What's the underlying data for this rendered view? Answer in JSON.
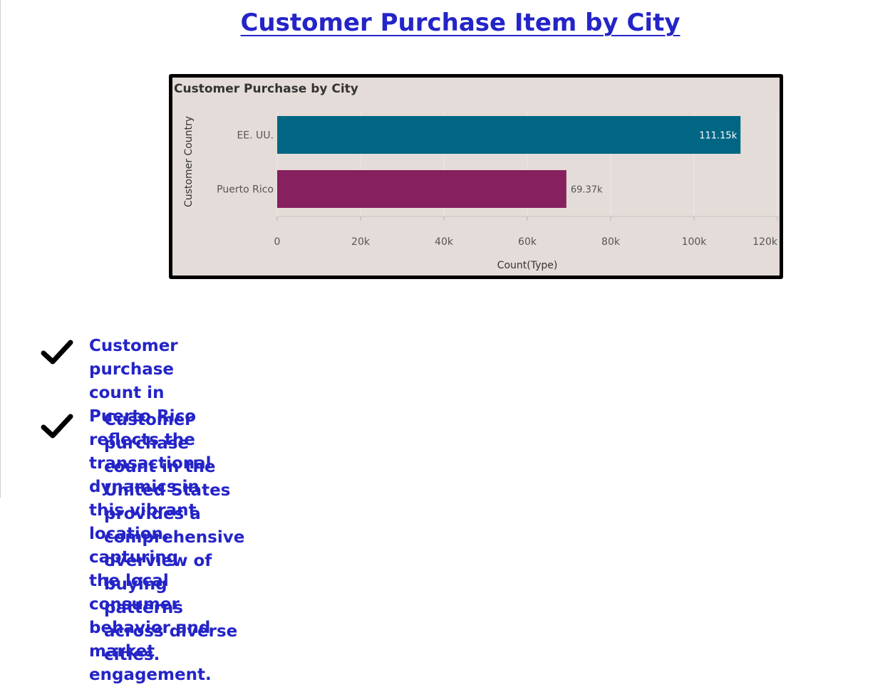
{
  "page": {
    "title": "Customer Purchase Item by City"
  },
  "chart_data": {
    "type": "bar",
    "orientation": "horizontal",
    "title": "Customer Purchase by City",
    "xlabel": "Count(Type)",
    "ylabel": "Customer Country",
    "categories": [
      "EE. UU.",
      "Puerto Rico"
    ],
    "values": [
      111150,
      69370
    ],
    "data_labels": [
      "111.15k",
      "69.37k"
    ],
    "bar_colors": [
      "#006684",
      "#86205e"
    ],
    "xlim": [
      0,
      120000
    ],
    "x_ticks": [
      0,
      20000,
      40000,
      60000,
      80000,
      100000,
      120000
    ],
    "x_tick_labels": [
      "0",
      "20k",
      "40k",
      "60k",
      "80k",
      "100k",
      "120k"
    ],
    "grid": true,
    "legend": "none"
  },
  "insights": {
    "items": [
      {
        "icon": "checkmark-icon",
        "lines": [
          "Customer purchase count in Puerto Rico reflects the transactional dynamics in this vibrant",
          "location, capturing the local consumer behavior and market engagement."
        ]
      },
      {
        "icon": "checkmark-icon",
        "lines": [
          "Customer purchase count in the United States provides a comprehensive overview of",
          "buying patterns across diverse cities."
        ]
      }
    ]
  },
  "colors": {
    "title_text": "#2424c8",
    "panel_background": "#e4dcd8",
    "panel_border": "#000000"
  }
}
